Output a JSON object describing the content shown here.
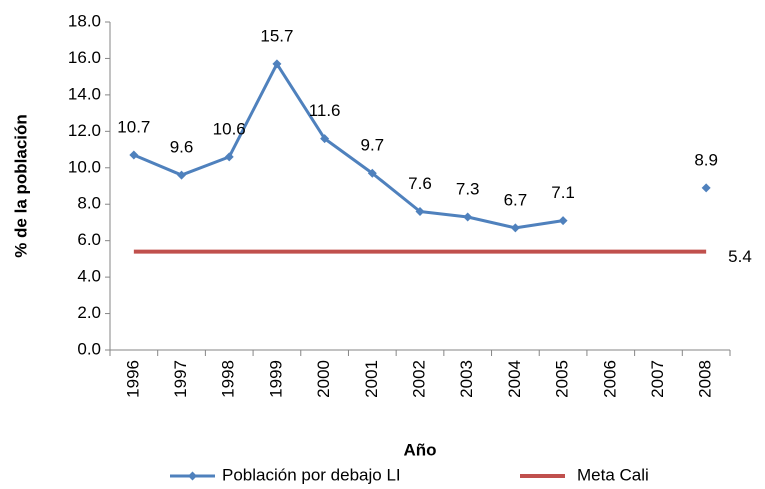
{
  "chart_data": {
    "type": "line",
    "x_label": "Año",
    "y_label": "% de la población",
    "categories": [
      "1996",
      "1997",
      "1998",
      "1999",
      "2000",
      "2001",
      "2002",
      "2003",
      "2004",
      "2005",
      "2006",
      "2007",
      "2008"
    ],
    "series": [
      {
        "name": "Población por debajo LI",
        "color": "#4f81bd",
        "marker": "diamond",
        "labels": "all",
        "values": [
          10.7,
          9.6,
          10.6,
          15.7,
          11.6,
          9.7,
          7.6,
          7.3,
          6.7,
          7.1,
          null,
          null,
          8.9
        ]
      },
      {
        "name": "Meta Cali",
        "color": "#c0504d",
        "marker": "none",
        "labels": "last",
        "values": [
          5.4,
          5.4,
          5.4,
          5.4,
          5.4,
          5.4,
          5.4,
          5.4,
          5.4,
          5.4,
          5.4,
          5.4,
          5.4
        ]
      }
    ],
    "ylim": [
      0,
      18
    ],
    "yticks": [
      {
        "value": 0,
        "label": "0.0"
      },
      {
        "value": 2,
        "label": "2.0"
      },
      {
        "value": 4,
        "label": "4.0"
      },
      {
        "value": 6,
        "label": "6.0"
      },
      {
        "value": 8,
        "label": "8.0"
      },
      {
        "value": 10,
        "label": "10.0"
      },
      {
        "value": 12,
        "label": "12.0"
      },
      {
        "value": 14,
        "label": "14.0"
      },
      {
        "value": 16,
        "label": "16.0"
      },
      {
        "value": 18,
        "label": "18.0"
      }
    ],
    "grid": false,
    "legend": "bottom"
  }
}
